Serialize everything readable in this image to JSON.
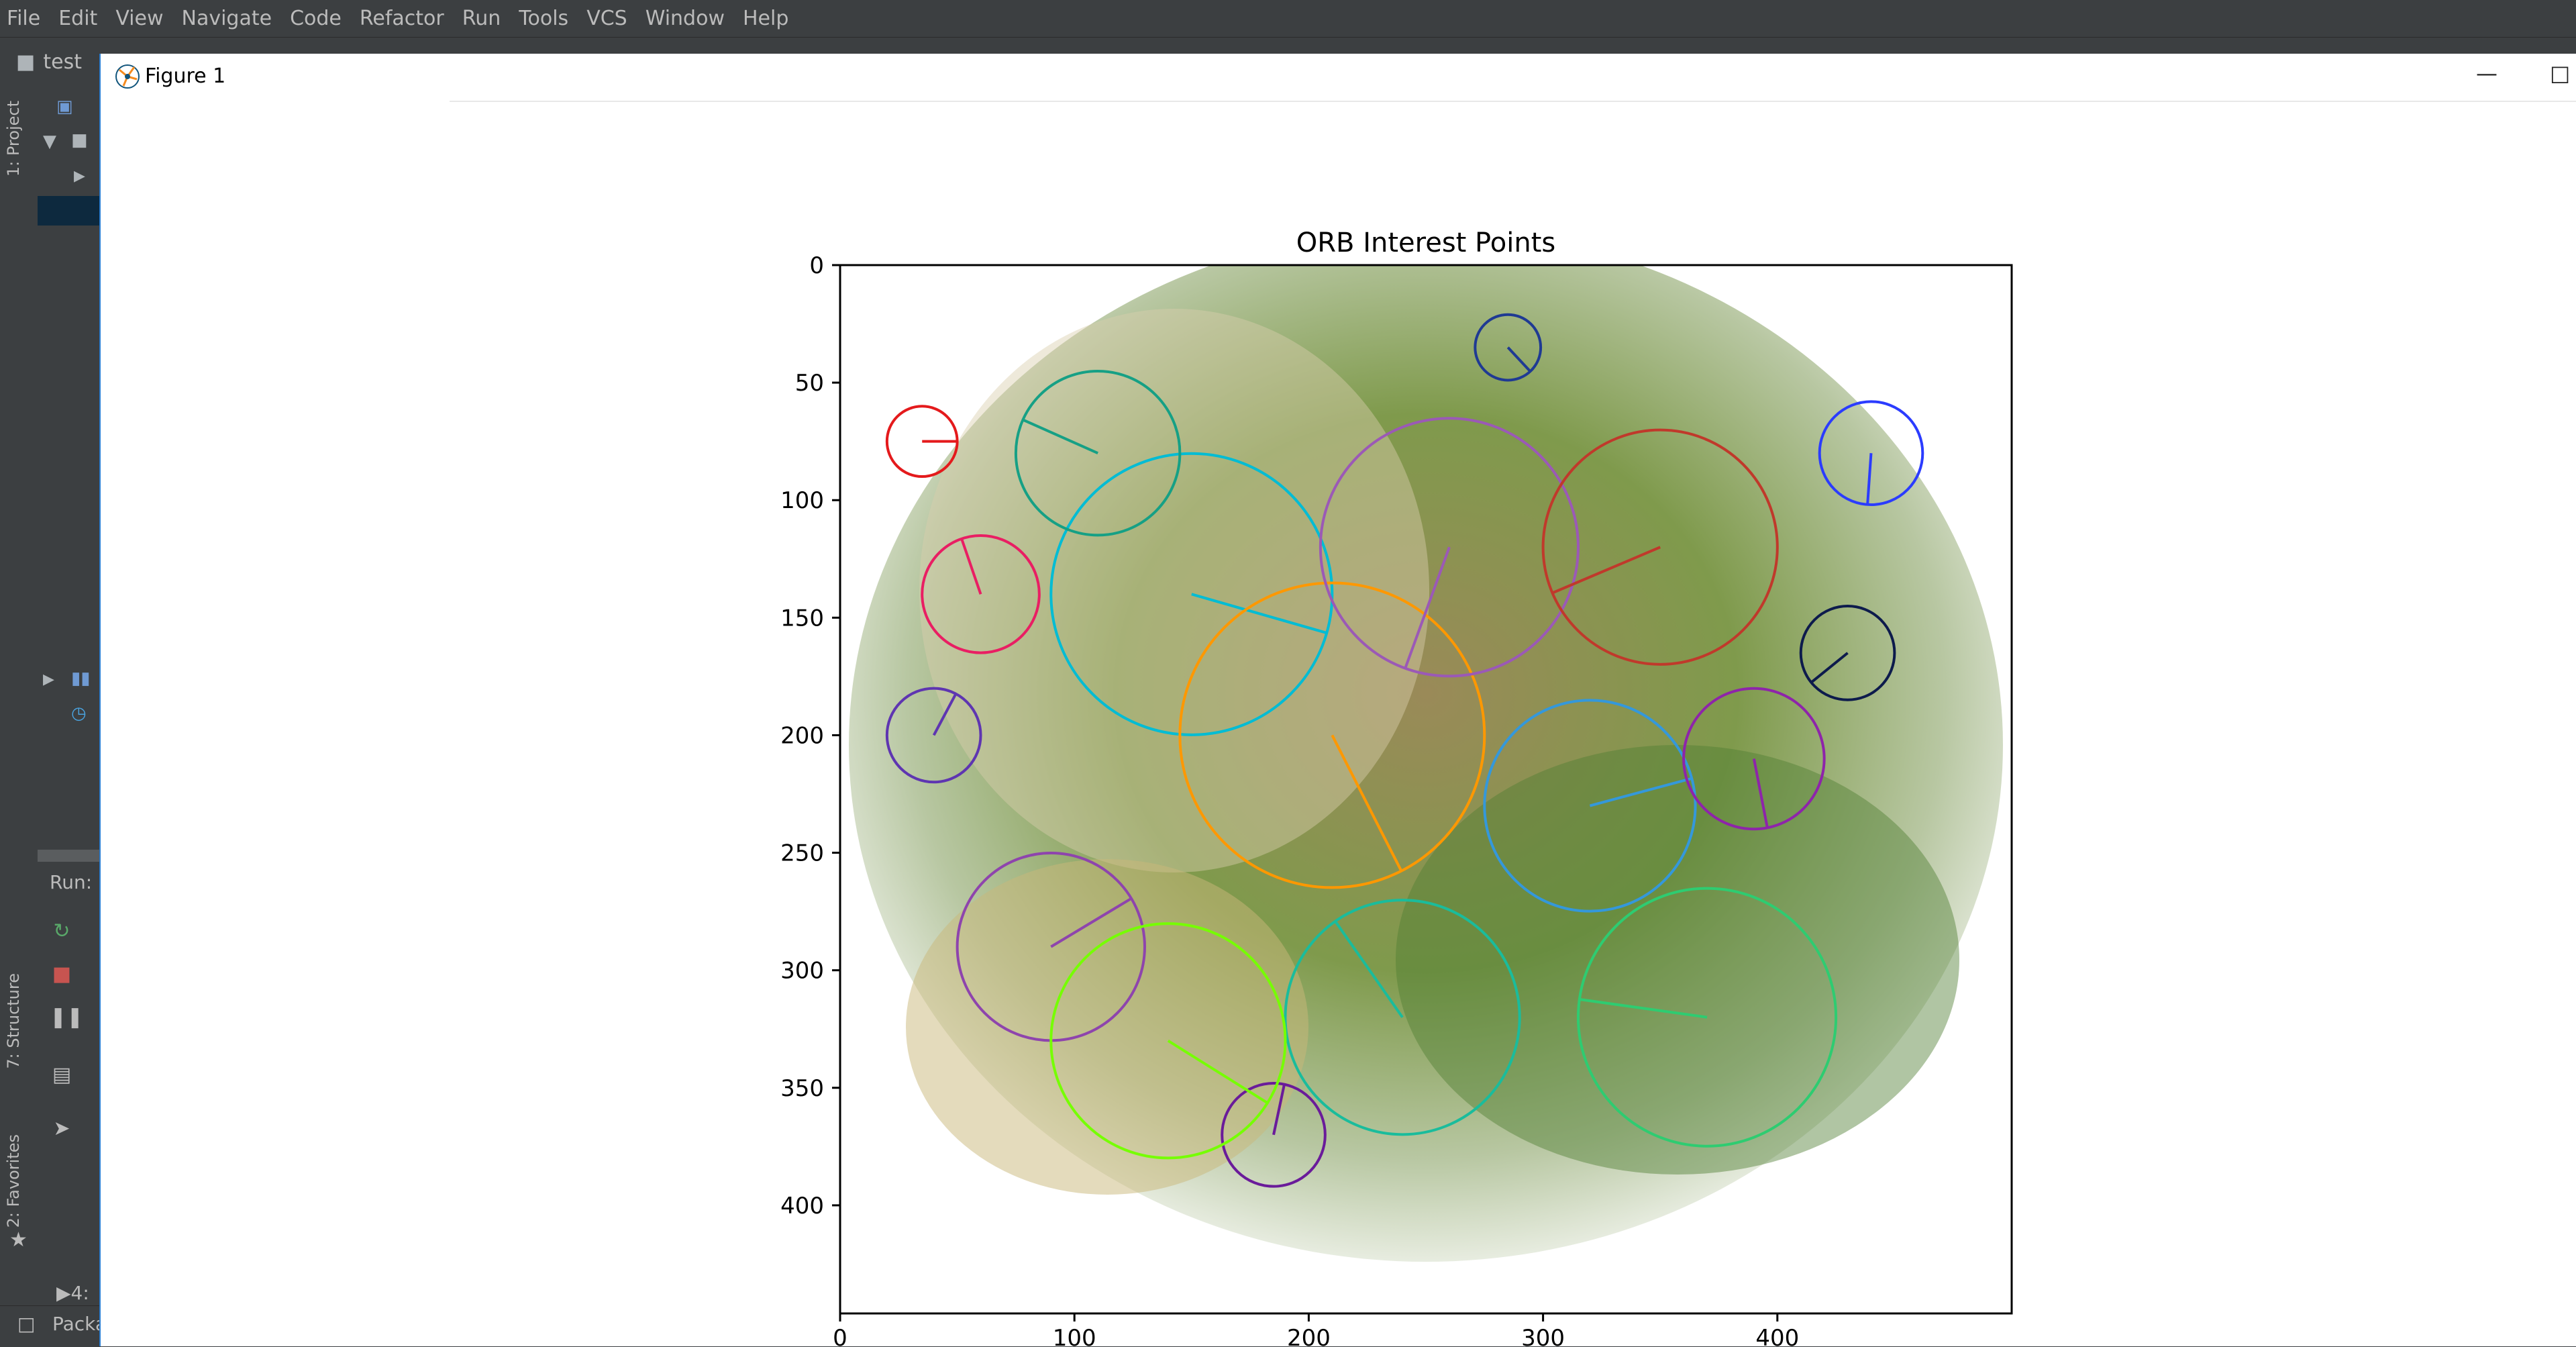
{
  "menubar": {
    "items": [
      "File",
      "Edit",
      "View",
      "Navigate",
      "Code",
      "Refactor",
      "Run",
      "Tools",
      "VCS",
      "Window",
      "Help"
    ]
  },
  "ide": {
    "project_name": "test",
    "tabs": {
      "project": "1: Project",
      "structure": "7: Structure",
      "favorites": "2: Favorites"
    },
    "run_label": "Run:",
    "bottom_packages": "Packa",
    "bottom_run": "4:"
  },
  "figure": {
    "window_title": "Figure 1",
    "chart_data": {
      "type": "scatter",
      "title": "ORB Interest Points",
      "xlabel": "",
      "ylabel": "",
      "xlim": [
        0,
        500
      ],
      "ylim": [
        446,
        0
      ],
      "x_ticks": [
        0,
        100,
        200,
        300,
        400
      ],
      "y_ticks": [
        0,
        50,
        100,
        150,
        200,
        250,
        300,
        350,
        400
      ],
      "keypoints": [
        {
          "x": 35,
          "y": 75,
          "size": 15,
          "color": "#e41a1c"
        },
        {
          "x": 285,
          "y": 35,
          "size": 14,
          "color": "#1f3a93"
        },
        {
          "x": 440,
          "y": 80,
          "size": 22,
          "color": "#2b3cff"
        },
        {
          "x": 430,
          "y": 165,
          "size": 20,
          "color": "#0d1b4c"
        },
        {
          "x": 370,
          "y": 320,
          "size": 55,
          "color": "#2ecc71"
        },
        {
          "x": 240,
          "y": 320,
          "size": 50,
          "color": "#1abc9c"
        },
        {
          "x": 185,
          "y": 370,
          "size": 22,
          "color": "#6a1b9a"
        },
        {
          "x": 90,
          "y": 290,
          "size": 40,
          "color": "#8e44ad"
        },
        {
          "x": 150,
          "y": 140,
          "size": 60,
          "color": "#00bcd4"
        },
        {
          "x": 210,
          "y": 200,
          "size": 65,
          "color": "#ff9800"
        },
        {
          "x": 260,
          "y": 120,
          "size": 55,
          "color": "#9b59b6"
        },
        {
          "x": 350,
          "y": 120,
          "size": 50,
          "color": "#c0392b"
        },
        {
          "x": 110,
          "y": 80,
          "size": 35,
          "color": "#16a085"
        },
        {
          "x": 60,
          "y": 140,
          "size": 25,
          "color": "#e91e63"
        },
        {
          "x": 40,
          "y": 200,
          "size": 20,
          "color": "#5e35b1"
        },
        {
          "x": 320,
          "y": 230,
          "size": 45,
          "color": "#3498db"
        },
        {
          "x": 140,
          "y": 330,
          "size": 50,
          "color": "#76ff03"
        },
        {
          "x": 390,
          "y": 210,
          "size": 30,
          "color": "#8e24aa"
        }
      ]
    }
  }
}
